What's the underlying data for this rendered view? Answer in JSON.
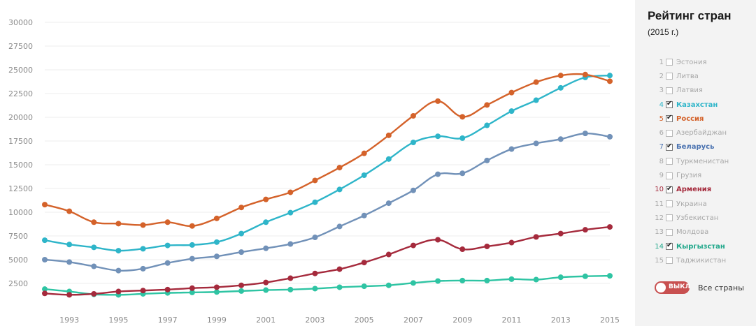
{
  "chart_data": {
    "type": "line",
    "x": [
      1992,
      1993,
      1994,
      1995,
      1996,
      1997,
      1998,
      1999,
      2000,
      2001,
      2002,
      2003,
      2004,
      2005,
      2006,
      2007,
      2008,
      2009,
      2010,
      2011,
      2012,
      2013,
      2014,
      2015
    ],
    "x_tick_labels": [
      "1993",
      "1995",
      "1997",
      "1999",
      "2001",
      "2003",
      "2005",
      "2007",
      "2009",
      "2011",
      "2013",
      "2015"
    ],
    "y_tick_labels": [
      "2500",
      "5000",
      "7500",
      "10000",
      "12500",
      "15000",
      "17500",
      "20000",
      "22500",
      "25000",
      "27500",
      "30000"
    ],
    "ylim": [
      0,
      30000
    ],
    "xlim": [
      1992,
      2015
    ],
    "grid": true,
    "series": [
      {
        "name": "Россия",
        "color": "#d4622a",
        "values": [
          10800,
          10100,
          8950,
          8800,
          8650,
          8950,
          8550,
          9350,
          10500,
          11350,
          12100,
          13350,
          14700,
          16200,
          18100,
          20150,
          21700,
          20050,
          21300,
          22600,
          23700,
          24400,
          24500,
          23800
        ]
      },
      {
        "name": "Казахстан",
        "color": "#2eb5c9",
        "values": [
          7050,
          6600,
          6300,
          5950,
          6150,
          6500,
          6550,
          6850,
          7750,
          8950,
          9950,
          11050,
          12400,
          13900,
          15600,
          17350,
          18000,
          17800,
          19150,
          20650,
          21800,
          23100,
          24200,
          24400
        ]
      },
      {
        "name": "Беларусь",
        "color": "#7191b8",
        "values": [
          5000,
          4750,
          4300,
          3850,
          4050,
          4650,
          5100,
          5350,
          5800,
          6200,
          6650,
          7350,
          8500,
          9650,
          10950,
          12300,
          14000,
          14100,
          15450,
          16650,
          17250,
          17700,
          18300,
          17950
        ]
      },
      {
        "name": "Армения",
        "color": "#a52a3c",
        "values": [
          1450,
          1300,
          1400,
          1650,
          1750,
          1850,
          2000,
          2100,
          2300,
          2600,
          3050,
          3550,
          4000,
          4700,
          5550,
          6500,
          7100,
          6100,
          6400,
          6800,
          7400,
          7750,
          8150,
          8450
        ]
      },
      {
        "name": "Кыргызстан",
        "color": "#2ec4a3",
        "values": [
          1900,
          1650,
          1350,
          1300,
          1400,
          1500,
          1550,
          1600,
          1700,
          1800,
          1850,
          1950,
          2100,
          2200,
          2300,
          2550,
          2750,
          2800,
          2800,
          2950,
          2900,
          3150,
          3250,
          3300
        ]
      }
    ]
  },
  "panel": {
    "title": "Рейтинг стран",
    "year": "(2015 г.)",
    "countries": [
      {
        "rank": "1",
        "name": "Эстония",
        "checked": false,
        "color": ""
      },
      {
        "rank": "2",
        "name": "Литва",
        "checked": false,
        "color": ""
      },
      {
        "rank": "3",
        "name": "Латвия",
        "checked": false,
        "color": ""
      },
      {
        "rank": "4",
        "name": "Казахстан",
        "checked": true,
        "color": "#2eb5c9"
      },
      {
        "rank": "5",
        "name": "Россия",
        "checked": true,
        "color": "#d4622a"
      },
      {
        "rank": "6",
        "name": "Азербайджан",
        "checked": false,
        "color": ""
      },
      {
        "rank": "7",
        "name": "Беларусь",
        "checked": true,
        "color": "#4a72b0"
      },
      {
        "rank": "8",
        "name": "Туркменистан",
        "checked": false,
        "color": ""
      },
      {
        "rank": "9",
        "name": "Грузия",
        "checked": false,
        "color": ""
      },
      {
        "rank": "10",
        "name": "Армения",
        "checked": true,
        "color": "#a52a3c"
      },
      {
        "rank": "11",
        "name": "Украина",
        "checked": false,
        "color": ""
      },
      {
        "rank": "12",
        "name": "Узбекистан",
        "checked": false,
        "color": ""
      },
      {
        "rank": "13",
        "name": "Молдова",
        "checked": false,
        "color": ""
      },
      {
        "rank": "14",
        "name": "Кыргызстан",
        "checked": true,
        "color": "#1fa78a"
      },
      {
        "rank": "15",
        "name": "Таджикистан",
        "checked": false,
        "color": ""
      }
    ],
    "toggle_label": "ВЫКЛ",
    "toggle_color": "#c85050",
    "all_countries_label": "Все страны"
  }
}
